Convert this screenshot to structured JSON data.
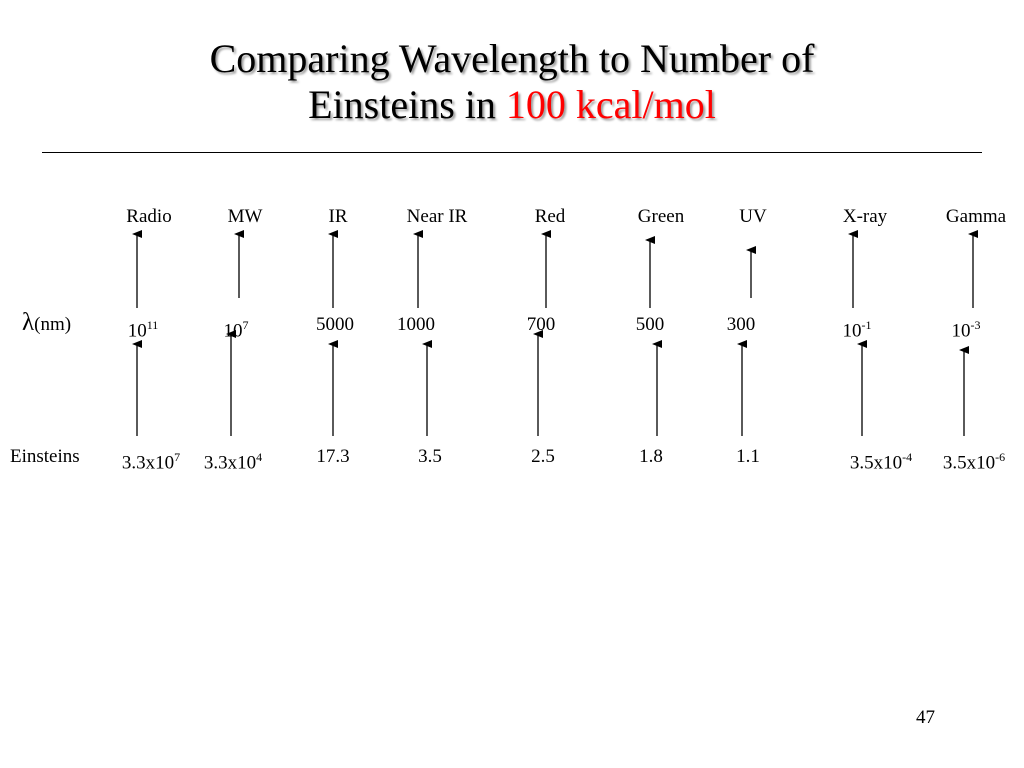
{
  "title": {
    "line1": "Comparing Wavelength to Number of",
    "line2_prefix": "Einsteins in ",
    "line2_accent": "100 kcal/mol"
  },
  "colors": {
    "accent": "#ff0000",
    "text": "#000000"
  },
  "row_labels": {
    "wavelength_symbol": "λ",
    "wavelength_unit": "(nm)",
    "einsteins": "Einsteins"
  },
  "columns": [
    {
      "region": "Radio",
      "wavelength": {
        "base": "10",
        "exp": "11"
      },
      "einsteins": {
        "base": "3.3x10",
        "exp": "7"
      }
    },
    {
      "region": "MW",
      "wavelength": {
        "base": "10",
        "exp": "7"
      },
      "einsteins": {
        "base": "3.3x10",
        "exp": "4"
      }
    },
    {
      "region": "IR",
      "wavelength": {
        "base": "5000"
      },
      "einsteins": {
        "base": "17.3"
      }
    },
    {
      "region": "Near IR",
      "wavelength": {
        "base": "1000"
      },
      "einsteins": {
        "base": "3.5"
      }
    },
    {
      "region": "Red",
      "wavelength": {
        "base": "700"
      },
      "einsteins": {
        "base": "2.5"
      }
    },
    {
      "region": "Green",
      "wavelength": {
        "base": "500"
      },
      "einsteins": {
        "base": "1.8"
      }
    },
    {
      "region": "UV",
      "wavelength": {
        "base": "300"
      },
      "einsteins": {
        "base": "1.1"
      }
    },
    {
      "region": "X-ray",
      "wavelength": {
        "base": "10",
        "exp": "-1"
      },
      "einsteins": {
        "base": "3.5x10",
        "exp": "-4"
      }
    },
    {
      "region": "Gamma",
      "wavelength": {
        "base": "10",
        "exp": "-3"
      },
      "einsteins": {
        "base": "3.5x10",
        "exp": "-6"
      }
    }
  ],
  "page_number": "47"
}
